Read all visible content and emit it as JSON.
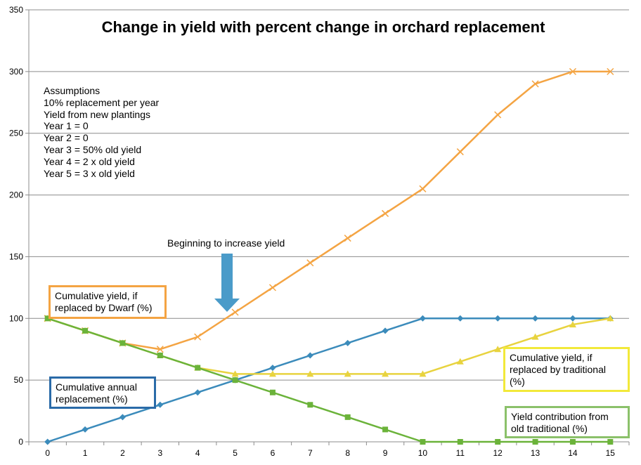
{
  "chart_data": {
    "type": "line",
    "title": "Change in yield with percent change in orchard replacement",
    "x": [
      0,
      1,
      2,
      3,
      4,
      5,
      6,
      7,
      8,
      9,
      10,
      11,
      12,
      13,
      14,
      15
    ],
    "xlabel": "",
    "ylabel": "",
    "ylim": [
      0,
      350
    ],
    "yticks": [
      0,
      50,
      100,
      150,
      200,
      250,
      300,
      350
    ],
    "grid": "horizontal",
    "series": [
      {
        "name": "Cumulative yield, if replaced by Dwarf (%)",
        "color": "#F4A443",
        "marker": "x",
        "values": [
          100,
          90,
          80,
          75,
          85,
          105,
          125,
          145,
          165,
          185,
          205,
          235,
          265,
          290,
          300,
          300
        ]
      },
      {
        "name": "Cumulative annual replacement (%)",
        "color": "#3B8BBB",
        "marker": "diamond",
        "values": [
          0,
          10,
          20,
          30,
          40,
          50,
          60,
          70,
          80,
          90,
          100,
          100,
          100,
          100,
          100,
          100
        ]
      },
      {
        "name": "Cumulative yield, if replaced by traditional (%)",
        "color": "#E8D33F",
        "marker": "triangle",
        "values": [
          100,
          90,
          80,
          70,
          60,
          55,
          55,
          55,
          55,
          55,
          55,
          65,
          75,
          85,
          95,
          100
        ]
      },
      {
        "name": "Yield contribution from old traditional (%)",
        "color": "#6BB33A",
        "marker": "square",
        "values": [
          100,
          90,
          80,
          70,
          60,
          50,
          40,
          30,
          20,
          10,
          0,
          0,
          0,
          0,
          0,
          0
        ]
      }
    ],
    "annotations": {
      "assumptions": [
        "Assumptions",
        "10% replacement per year",
        "Yield from new plantings",
        "Year 1 = 0",
        "Year 2 = 0",
        "Year 3 = 50% old yield",
        "Year 4 = 2 x old yield",
        "Year 5 = 3 x old yield"
      ],
      "arrow_label": "Beginning to increase yield",
      "arrow_color": "#4A9BC9"
    },
    "callouts": [
      {
        "id": "dwarf",
        "text": "Cumulative yield, if replaced by Dwarf (%)",
        "border": "#F4A443"
      },
      {
        "id": "replacement",
        "text": "Cumulative annual replacement (%)",
        "border": "#2A6BA8"
      },
      {
        "id": "traditional",
        "text": "Cumulative yield, if replaced by traditional (%)",
        "border": "#F2E93A"
      },
      {
        "id": "old",
        "text": "Yield contribution from old traditional (%)",
        "border": "#8BC16A"
      }
    ]
  }
}
